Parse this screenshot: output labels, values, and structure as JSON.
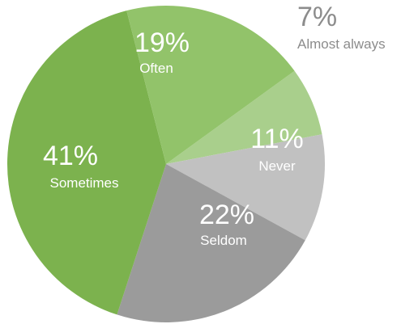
{
  "chart_data": {
    "type": "pie",
    "title": "",
    "slices": [
      {
        "label": "Almost always",
        "value": 7,
        "display": "7%",
        "color": "#a9cf8c",
        "label_color": "#8c8c8c",
        "outside": true
      },
      {
        "label": "Never",
        "value": 11,
        "display": "11%",
        "color": "#c1c1c1",
        "label_color": "#ffffff",
        "outside": false
      },
      {
        "label": "Seldom",
        "value": 22,
        "display": "22%",
        "color": "#9b9b9b",
        "label_color": "#ffffff",
        "outside": false
      },
      {
        "label": "Sometimes",
        "value": 41,
        "display": "41%",
        "color": "#7cb24e",
        "label_color": "#ffffff",
        "outside": false
      },
      {
        "label": "Often",
        "value": 19,
        "display": "19%",
        "color": "#92c36a",
        "label_color": "#ffffff",
        "outside": false
      }
    ],
    "start_angle_deg": 54,
    "direction": "clockwise",
    "legend": "none"
  }
}
